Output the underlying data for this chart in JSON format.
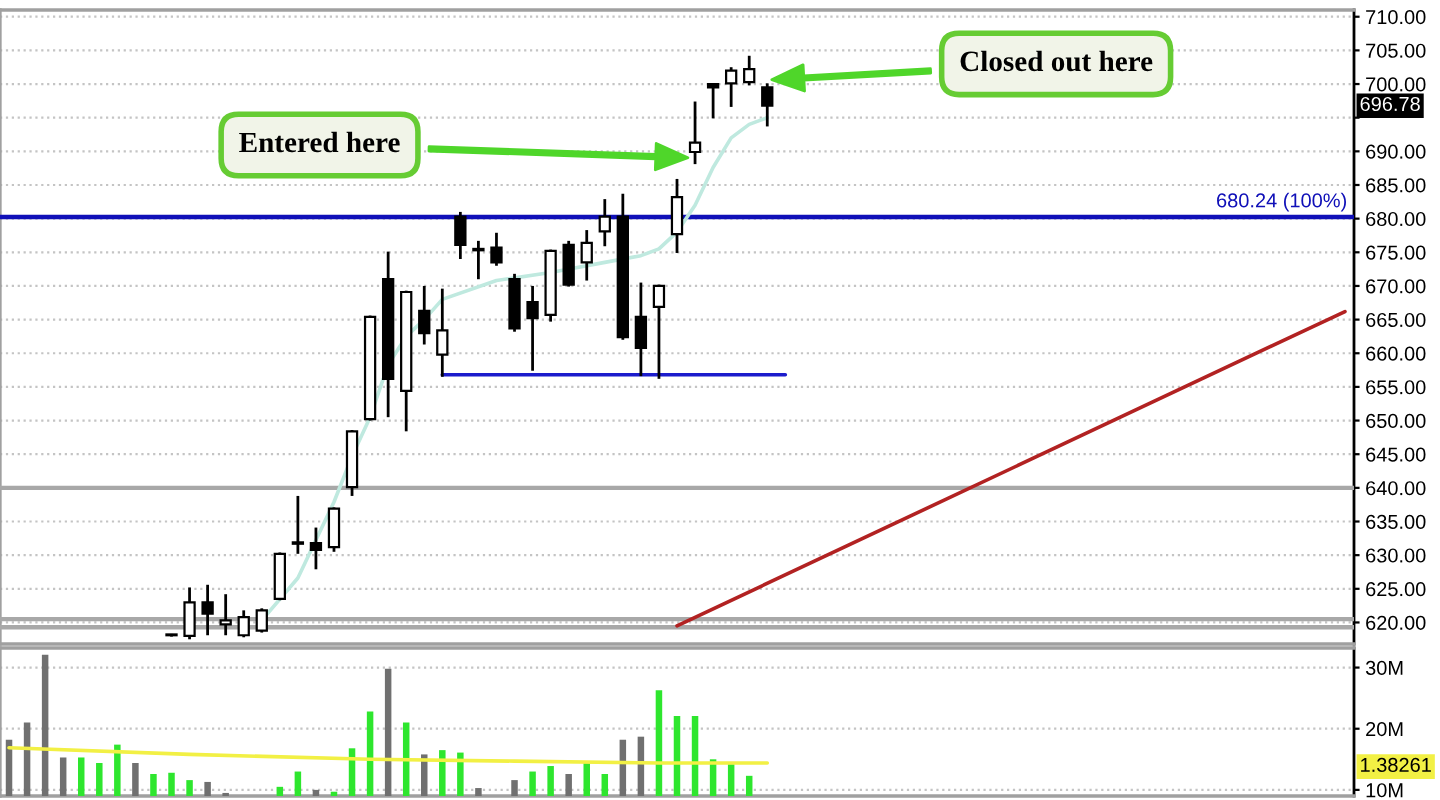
{
  "chart_data": [
    {
      "type": "candlestick",
      "color": "#000000",
      "categories": [
        null,
        null,
        null,
        null,
        null,
        null,
        null,
        null,
        null,
        null,
        null,
        null,
        null,
        null,
        null,
        null,
        null,
        null,
        null,
        null,
        null,
        null,
        null,
        null,
        null,
        null,
        null,
        null,
        null,
        null,
        null,
        null,
        null,
        null,
        null,
        null,
        null,
        null,
        null,
        null,
        null,
        null,
        null,
        null,
        null,
        null,
        null,
        null,
        null,
        null,
        null,
        null,
        null,
        null,
        null,
        null,
        null,
        null,
        null,
        null,
        null,
        null,
        null,
        null,
        null,
        null,
        null,
        null,
        null,
        null,
        null,
        null,
        null,
        null,
        null
      ],
      "ohlc": [
        null,
        null,
        null,
        null,
        null,
        null,
        null,
        null,
        null,
        [
          618.1,
          618.3,
          617.9,
          618.1
        ],
        [
          618.0,
          625.2,
          617.5,
          623.0
        ],
        [
          623.0,
          625.6,
          618.1,
          621.3
        ],
        [
          619.7,
          624.2,
          618.1,
          620.3
        ],
        [
          618.1,
          621.8,
          617.8,
          620.8
        ],
        [
          618.8,
          622.1,
          618.5,
          621.8
        ],
        [
          623.5,
          630.4,
          623.3,
          630.2
        ],
        [
          631.9,
          638.8,
          630.2,
          631.7
        ],
        [
          631.8,
          634.1,
          627.9,
          630.8
        ],
        [
          631.2,
          637.1,
          630.5,
          636.9
        ],
        [
          640.1,
          648.6,
          638.8,
          648.4
        ],
        [
          650.2,
          665.6,
          650.0,
          665.4
        ],
        [
          671.0,
          675.1,
          650.5,
          656.2
        ],
        [
          654.4,
          669.3,
          648.4,
          669.1
        ],
        [
          666.3,
          670.0,
          661.3,
          663.0
        ],
        [
          659.8,
          669.6,
          656.5,
          663.4
        ],
        [
          680.3,
          681.0,
          674.0,
          676.1
        ],
        [
          675.5,
          676.7,
          671.0,
          675.3
        ],
        [
          675.7,
          677.9,
          673.0,
          673.5
        ],
        [
          671.0,
          671.8,
          663.2,
          663.7
        ],
        [
          667.6,
          670.0,
          657.4,
          665.2
        ],
        [
          665.7,
          675.4,
          664.7,
          675.2
        ],
        [
          676.1,
          676.7,
          669.9,
          670.2
        ],
        [
          673.5,
          678.3,
          670.8,
          676.4
        ],
        [
          678.1,
          682.9,
          675.9,
          680.3
        ],
        [
          680.3,
          683.7,
          662.0,
          662.4
        ],
        [
          665.4,
          670.5,
          656.6,
          660.8
        ],
        [
          666.9,
          670.2,
          656.2,
          670.0
        ],
        [
          677.7,
          685.9,
          674.9,
          683.2
        ],
        [
          689.9,
          697.4,
          688.1,
          691.3
        ],
        [
          700.0,
          700.1,
          694.9,
          699.5
        ],
        [
          700.1,
          702.5,
          696.6,
          702.0
        ],
        [
          700.3,
          704.2,
          699.8,
          702.2
        ],
        [
          699.5,
          700.1,
          693.7,
          696.78
        ],
        null,
        null,
        null,
        null,
        null,
        null,
        null,
        null,
        null,
        null,
        null,
        null,
        null,
        null,
        null,
        null,
        null,
        null,
        null,
        null,
        null,
        null,
        null,
        null,
        null,
        null,
        null,
        null,
        null,
        null,
        null,
        null
      ],
      "series": [
        {
          "type": "line",
          "color": "#bfe9df",
          "values": [
            null,
            null,
            null,
            null,
            null,
            null,
            null,
            null,
            null,
            null,
            null,
            null,
            null,
            null,
            620.3,
            null,
            626.6,
            null,
            637.9,
            644.7,
            650.5,
            658.3,
            662.5,
            665.0,
            668.0,
            null,
            null,
            670.8,
            null,
            null,
            672.0,
            null,
            null,
            673.5,
            null,
            674.5,
            675.5,
            678.0,
            682.0,
            687.6,
            692.0,
            694.0,
            695.0,
            null,
            null,
            null,
            null,
            null,
            null,
            null,
            null,
            null,
            null,
            null,
            null,
            null,
            null,
            null,
            null,
            null,
            null,
            null,
            null,
            null,
            null,
            null,
            null,
            null,
            null,
            null,
            null,
            null,
            null,
            null,
            null
          ]
        },
        {
          "type": "line",
          "color": "#b22222",
          "values": [
            null,
            null,
            null,
            null,
            null,
            null,
            null,
            null,
            null,
            null,
            null,
            null,
            null,
            null,
            null,
            null,
            null,
            null,
            null,
            null,
            null,
            null,
            null,
            null,
            null,
            null,
            null,
            null,
            null,
            null,
            null,
            null,
            null,
            null,
            null,
            null,
            null,
            619.5,
            null,
            null,
            null,
            null,
            null,
            null,
            null,
            null,
            null,
            null,
            null,
            null,
            null,
            null,
            null,
            null,
            null,
            null,
            null,
            null,
            null,
            null,
            null,
            null,
            null,
            null,
            null,
            null,
            null,
            null,
            null,
            null,
            null,
            null,
            null,
            null,
            666.2
          ]
        },
        {
          "type": "line",
          "color": "#1c1ccc",
          "values": [
            null,
            null,
            null,
            null,
            null,
            null,
            null,
            null,
            null,
            null,
            null,
            null,
            null,
            null,
            null,
            null,
            null,
            null,
            null,
            null,
            null,
            null,
            null,
            null,
            656.8,
            null,
            null,
            null,
            null,
            null,
            null,
            null,
            null,
            null,
            null,
            null,
            null,
            null,
            null,
            null,
            null,
            null,
            null,
            656.8,
            null,
            null,
            null,
            null,
            null,
            null,
            null,
            null,
            null,
            null,
            null,
            null,
            null,
            null,
            null,
            null,
            null,
            null,
            null,
            null,
            null,
            null,
            null,
            null,
            null,
            null,
            null,
            null,
            null,
            null,
            null
          ]
        }
      ],
      "ref_lines": [
        {
          "axis": "y",
          "value": 680.24,
          "label": "680.24 (100%)",
          "color": "#1010b8"
        },
        {
          "axis": "y",
          "value": 640,
          "color": "#a8a8a8"
        },
        {
          "axis": "y",
          "value": 620.5,
          "color": "#a8a8a8"
        },
        {
          "axis": "y",
          "value": 619.3,
          "color": "#a8a8a8"
        }
      ],
      "annotations": [
        "Entered here",
        "Closed out here",
        {
          "text": "696.78",
          "y": 696.78
        }
      ],
      "ylim": [
        616.8,
        711
      ],
      "yticks": [
        {
          "value": 620,
          "label": "620.00"
        },
        {
          "value": 625,
          "label": "625.00"
        },
        {
          "value": 630,
          "label": "630.00"
        },
        {
          "value": 635,
          "label": "635.00"
        },
        {
          "value": 640,
          "label": "640.00"
        },
        {
          "value": 645,
          "label": "645.00"
        },
        {
          "value": 650,
          "label": "650.00"
        },
        {
          "value": 655,
          "label": "655.00"
        },
        {
          "value": 660,
          "label": "660.00"
        },
        {
          "value": 665,
          "label": "665.00"
        },
        {
          "value": 670,
          "label": "670.00"
        },
        {
          "value": 675,
          "label": "675.00"
        },
        {
          "value": 680,
          "label": "680.00"
        },
        {
          "value": 685,
          "label": "685.00"
        },
        {
          "value": 690,
          "label": "690.00"
        },
        {
          "value": 695,
          "label": null
        },
        {
          "value": 700,
          "label": "700.00"
        },
        {
          "value": 705,
          "label": "705.00"
        },
        {
          "value": 710,
          "label": "710.00"
        }
      ],
      "grid": "y",
      "tick_labels": "y"
    },
    {
      "type": "bar",
      "categories": [
        null,
        null,
        null,
        null,
        null,
        null,
        null,
        null,
        null,
        null,
        null,
        null,
        null,
        null,
        null,
        null,
        null,
        null,
        null,
        null,
        null,
        null,
        null,
        null,
        null,
        null,
        null,
        null,
        null,
        null,
        null,
        null,
        null,
        null,
        null,
        null,
        null,
        null,
        null,
        null,
        null,
        null,
        null,
        null,
        null,
        null,
        null,
        null,
        null,
        null,
        null,
        null,
        null,
        null,
        null,
        null,
        null,
        null,
        null,
        null,
        null,
        null,
        null,
        null,
        null,
        null,
        null,
        null,
        null,
        null,
        null,
        null,
        null,
        null,
        null
      ],
      "series": [
        {
          "type": "bar",
          "values": [
            18.2,
            21.0,
            32.1,
            15.3,
            15.3,
            14.4,
            17.4,
            14.4,
            12.6,
            12.8,
            11.6,
            11.3,
            9.5,
            null,
            null,
            10.5,
            13.0,
            10.0,
            9.7,
            16.8,
            22.8,
            29.8,
            21.0,
            15.8,
            16.5,
            16.1,
            10.3,
            null,
            11.6,
            13.0,
            13.9,
            12.6,
            14.7,
            12.6,
            18.2,
            18.7,
            26.3,
            22.1,
            22.1,
            15.0,
            14.2,
            12.3,
            null,
            null,
            null,
            null,
            null,
            null,
            null,
            null,
            null,
            null,
            null,
            null,
            null,
            null,
            null,
            null,
            null,
            null,
            null,
            null,
            null,
            null,
            null,
            null,
            null,
            null,
            null,
            null,
            null,
            null,
            null,
            null,
            null
          ],
          "colors": [
            "#707070",
            "#707070",
            "#707070",
            "#707070",
            "#2ee62e",
            "#2ee62e",
            "#2ee62e",
            "#707070",
            "#2ee62e",
            "#2ee62e",
            "#2ee62e",
            "#707070",
            "#707070",
            null,
            null,
            "#2ee62e",
            "#2ee62e",
            "#707070",
            "#2ee62e",
            "#2ee62e",
            "#2ee62e",
            "#707070",
            "#2ee62e",
            "#707070",
            "#2ee62e",
            "#2ee62e",
            "#707070",
            null,
            "#707070",
            "#2ee62e",
            "#2ee62e",
            "#707070",
            "#2ee62e",
            "#2ee62e",
            "#707070",
            "#707070",
            "#2ee62e",
            "#2ee62e",
            "#2ee62e",
            "#2ee62e",
            "#2ee62e",
            "#2ee62e",
            null,
            null,
            null,
            null,
            null,
            null,
            null,
            null,
            null,
            null,
            null,
            null,
            null,
            null,
            null,
            null,
            null,
            null,
            null,
            null,
            null,
            null,
            null,
            null,
            null,
            null,
            null,
            null,
            null,
            null,
            null,
            null,
            null
          ]
        },
        {
          "type": "line",
          "color": "#f2f044",
          "values": [
            16.9,
            null,
            null,
            null,
            null,
            null,
            null,
            null,
            null,
            null,
            15.8,
            null,
            null,
            null,
            null,
            null,
            null,
            null,
            null,
            null,
            15.0,
            null,
            null,
            null,
            null,
            null,
            null,
            null,
            14.7,
            null,
            null,
            null,
            null,
            null,
            null,
            null,
            14.4,
            null,
            null,
            null,
            null,
            null,
            14.4,
            null,
            null,
            null,
            null,
            null,
            null,
            null,
            null,
            null,
            null,
            null,
            null,
            null,
            null,
            null,
            null,
            null,
            null,
            null,
            null,
            null,
            null,
            null,
            null,
            null,
            null,
            null,
            null,
            null,
            null,
            null,
            null
          ]
        }
      ],
      "annotations": [
        {
          "text": "1.38261",
          "y": 13.8
        }
      ],
      "ylim": [
        9,
        33.2
      ],
      "yticks": [
        {
          "value": 10,
          "label": "10M"
        },
        {
          "value": 20,
          "label": "20M"
        },
        {
          "value": 30,
          "label": "30M"
        }
      ],
      "grid": "y",
      "tick_labels": "y"
    }
  ]
}
